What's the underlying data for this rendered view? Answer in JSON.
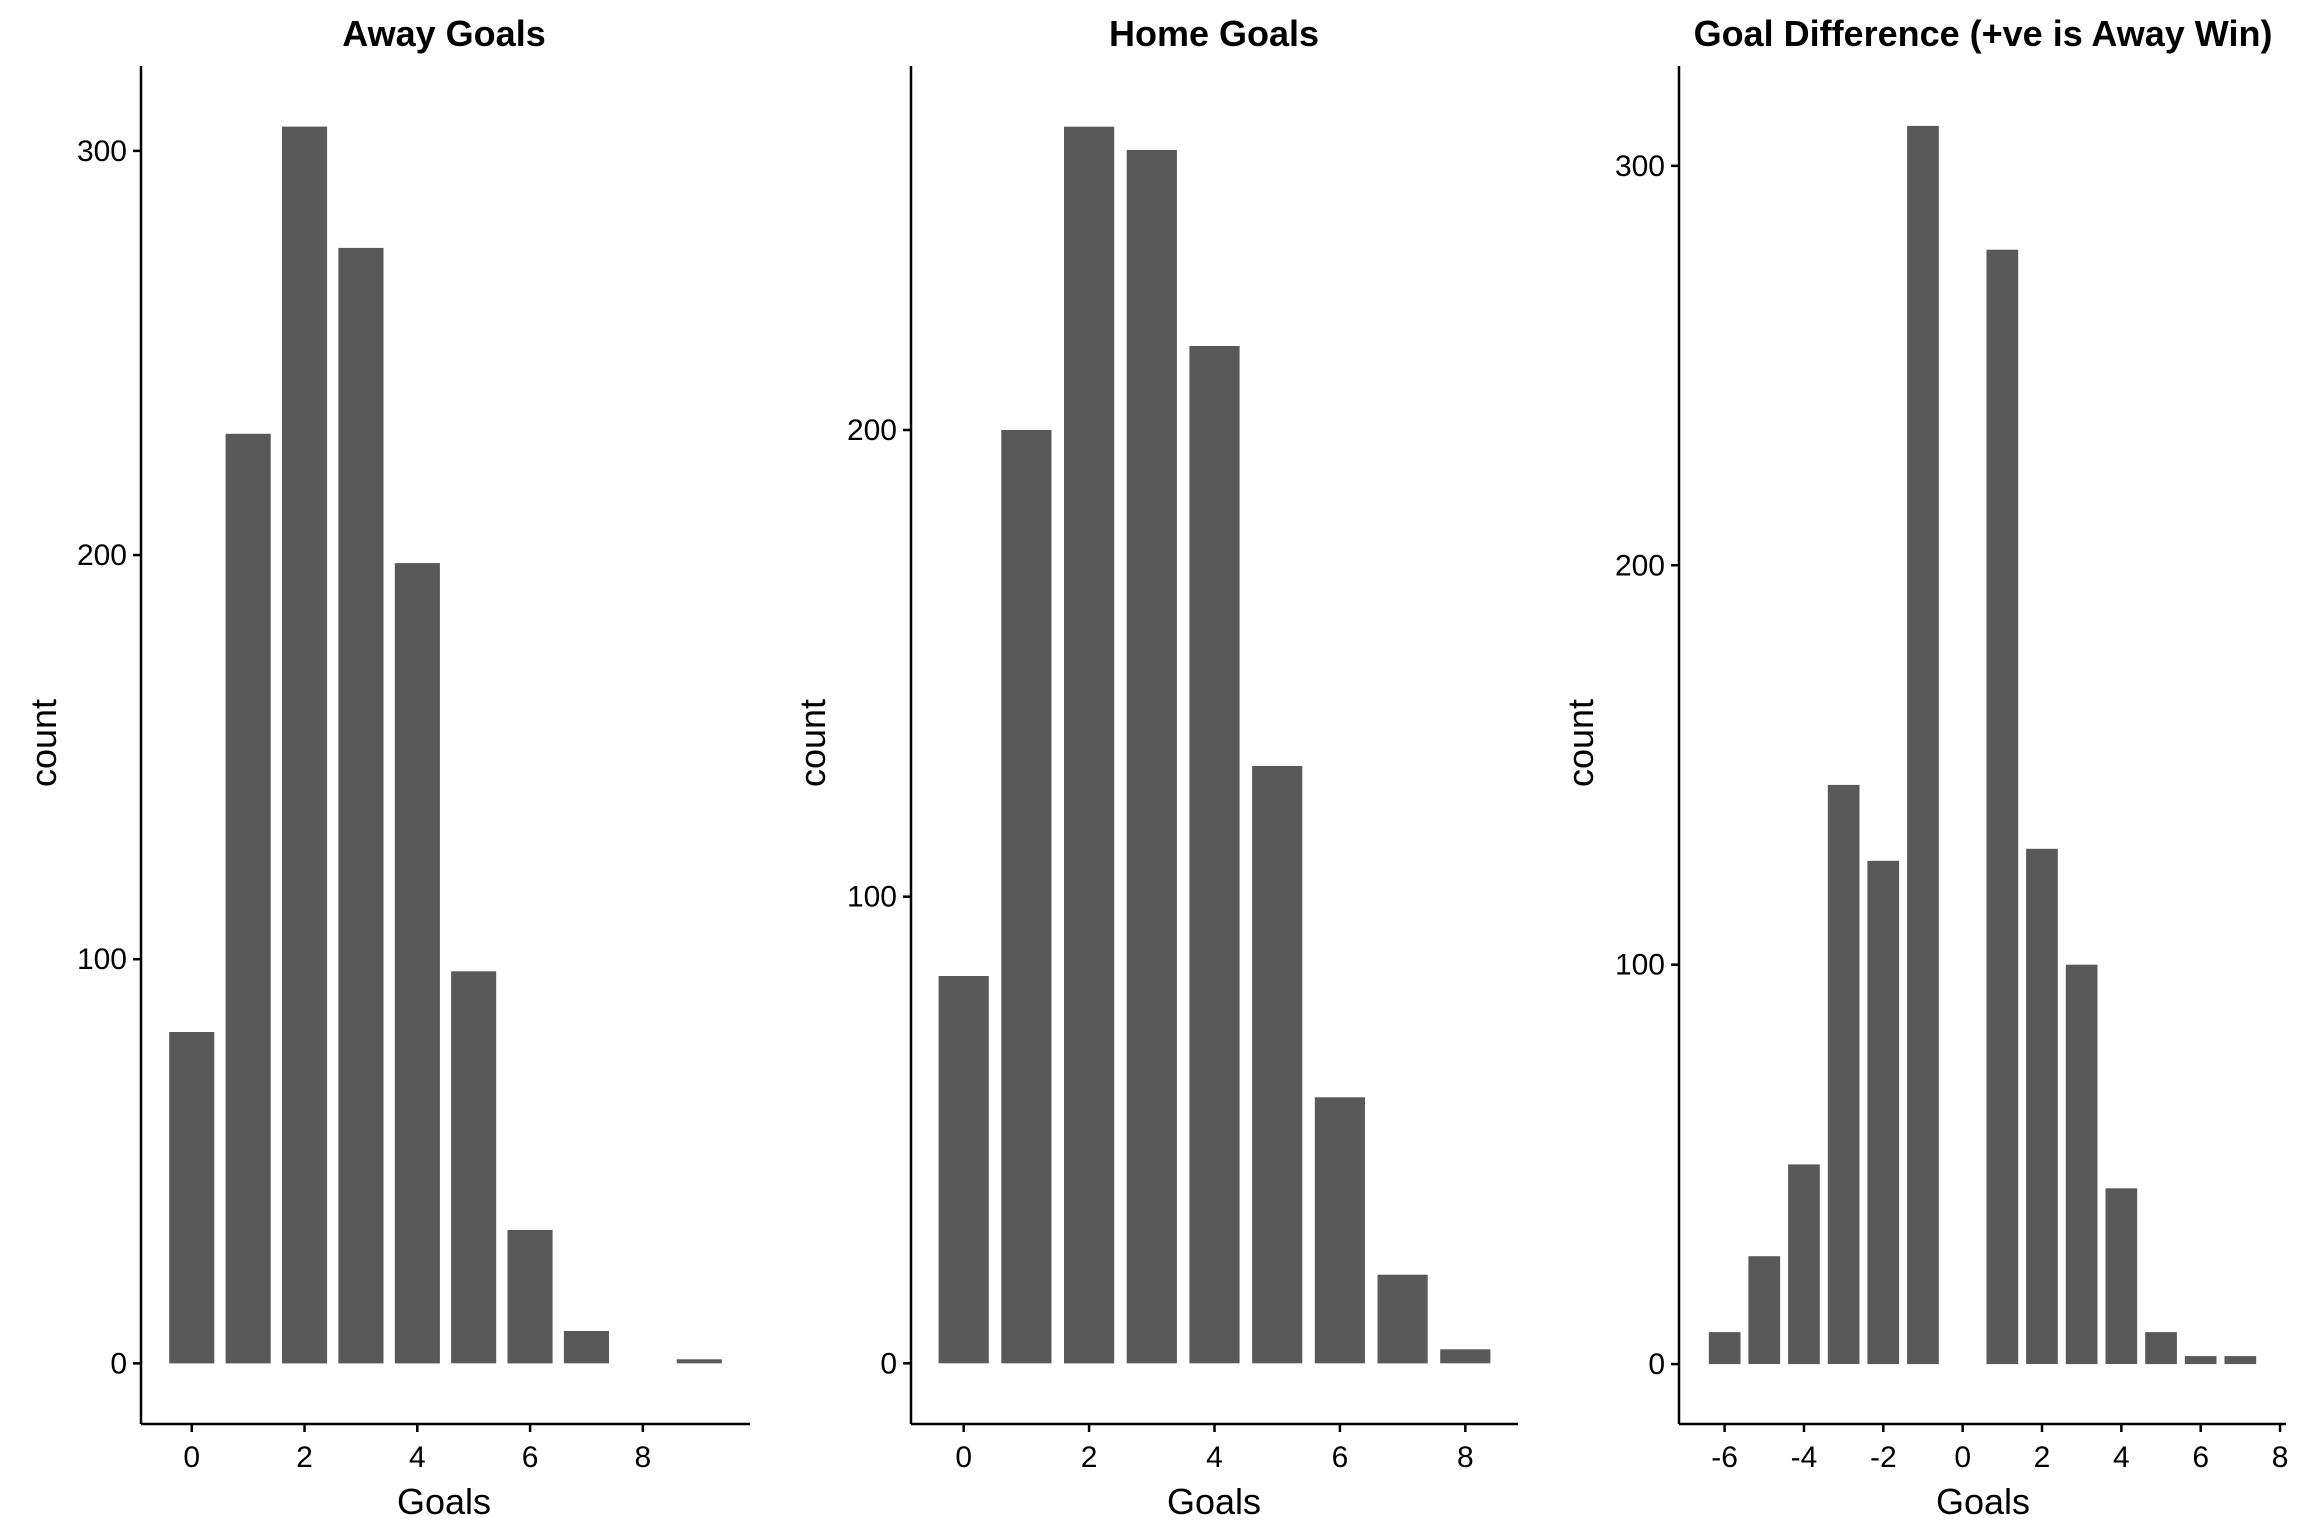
{
  "colors": {
    "bar": "#595959",
    "axis": "#000000",
    "background": "#ffffff"
  },
  "chart_data": [
    {
      "type": "bar",
      "title": "Away Goals",
      "xlabel": "Goals",
      "ylabel": "count",
      "x": [
        0,
        1,
        2,
        3,
        4,
        5,
        6,
        7,
        9
      ],
      "values": [
        82,
        230,
        306,
        276,
        198,
        97,
        33,
        8,
        1
      ],
      "xlim": [
        -0.9,
        9.9
      ],
      "ylim": [
        -15,
        321
      ],
      "xticks": [
        0,
        2,
        4,
        6,
        8
      ],
      "yticks": [
        0,
        100,
        200,
        300
      ],
      "grid": false,
      "legend": "none"
    },
    {
      "type": "bar",
      "title": "Home Goals",
      "xlabel": "Goals",
      "ylabel": "count",
      "x": [
        0,
        1,
        2,
        3,
        4,
        5,
        6,
        7,
        8
      ],
      "values": [
        83,
        200,
        265,
        260,
        218,
        128,
        57,
        19,
        3
      ],
      "xlim": [
        -0.84,
        8.84
      ],
      "ylim": [
        -13,
        278
      ],
      "xticks": [
        0,
        2,
        4,
        6,
        8
      ],
      "yticks": [
        0,
        100,
        200
      ],
      "grid": false,
      "legend": "none"
    },
    {
      "type": "bar",
      "title": "Goal Difference (+ve is Away Win)",
      "xlabel": "Goals",
      "ylabel": "count",
      "x": [
        -6,
        -5,
        -4,
        -3,
        -2,
        -1,
        1,
        2,
        3,
        4,
        5,
        6,
        7
      ],
      "values": [
        8,
        27,
        50,
        145,
        126,
        310,
        279,
        129,
        100,
        44,
        8,
        2,
        2
      ],
      "xlim": [
        -7.15,
        8.15
      ],
      "ylim": [
        -15,
        325
      ],
      "xticks": [
        -6,
        -4,
        -2,
        0,
        2,
        4,
        6,
        8
      ],
      "yticks": [
        0,
        100,
        200,
        300
      ],
      "grid": false,
      "legend": "none"
    }
  ]
}
